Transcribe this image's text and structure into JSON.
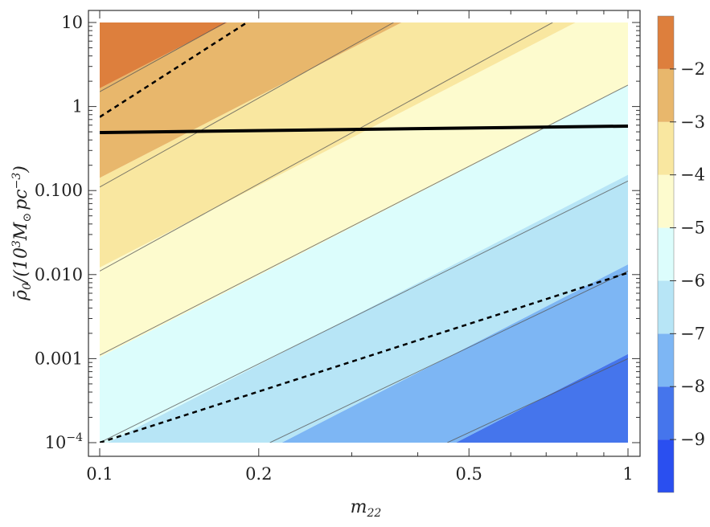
{
  "chart_data": {
    "type": "contour",
    "x_axis": {
      "label": "m",
      "label_sub": "22",
      "scale": "log",
      "range": [
        0.1,
        1
      ],
      "ticks": [
        {
          "value": 0.1,
          "label": "0.1"
        },
        {
          "value": 0.2,
          "label": "0.2"
        },
        {
          "value": 0.5,
          "label": "0.5"
        },
        {
          "value": 1,
          "label": "1"
        }
      ]
    },
    "y_axis": {
      "label_parts": {
        "rho": "ρ̄",
        "rho_sub": "0",
        "slash": "/(10",
        "exp3": "3",
        "msun": "M",
        "msun_sub": "⊙",
        "pc": "pc",
        "exp_neg3": "−3",
        "close": ")"
      },
      "scale": "log",
      "range": [
        0.0001,
        10
      ],
      "ticks": [
        {
          "value": 10,
          "label": "10"
        },
        {
          "value": 1,
          "label": "1"
        },
        {
          "value": 0.1,
          "label": "0.100"
        },
        {
          "value": 0.01,
          "label": "0.010"
        },
        {
          "value": 0.001,
          "label": "0.001"
        },
        {
          "value": 0.0001,
          "label": "10",
          "sup": "−4"
        }
      ]
    },
    "contour_levels": [
      -9,
      -8,
      -7,
      -6,
      -5,
      -4,
      -3,
      -2
    ],
    "contour_lines": [
      {
        "level": -2,
        "from": [
          0.1,
          1.5
        ],
        "to": [
          0.173,
          10
        ]
      },
      {
        "level": -3,
        "from": [
          0.1,
          0.11
        ],
        "to": [
          0.36,
          10
        ]
      },
      {
        "level": -4,
        "from": [
          0.1,
          0.011
        ],
        "to": [
          0.72,
          10
        ]
      },
      {
        "level": -5,
        "from": [
          0.1,
          0.0011
        ],
        "to": [
          1,
          1.8
        ]
      },
      {
        "level": -6,
        "from": [
          0.1,
          0.0001
        ],
        "to": [
          1,
          0.13
        ]
      },
      {
        "level": -7,
        "from": [
          0.21,
          0.0001
        ],
        "to": [
          1,
          0.011
        ]
      },
      {
        "level": -8,
        "from": [
          0.455,
          0.0001
        ],
        "to": [
          1,
          0.001
        ]
      }
    ],
    "band_colors": [
      {
        "range": [
          -10,
          -9
        ],
        "color": "#2a4ff0"
      },
      {
        "range": [
          -9,
          -8
        ],
        "color": "#4575ec"
      },
      {
        "range": [
          -8,
          -7
        ],
        "color": "#7db6f4"
      },
      {
        "range": [
          -7,
          -6
        ],
        "color": "#b7e5f6"
      },
      {
        "range": [
          -6,
          -5
        ],
        "color": "#dcfdfc"
      },
      {
        "range": [
          -5,
          -4
        ],
        "color": "#fdfbce"
      },
      {
        "range": [
          -4,
          -3
        ],
        "color": "#f9e7a0"
      },
      {
        "range": [
          -3,
          -2
        ],
        "color": "#e8b76c"
      },
      {
        "range": [
          -2,
          -1
        ],
        "color": "#dd7f3d"
      }
    ],
    "overlay_lines": [
      {
        "style": "solid-thick",
        "color": "#000000",
        "points": [
          [
            0.1,
            0.49
          ],
          [
            1,
            0.585
          ]
        ]
      },
      {
        "style": "dashed",
        "color": "#000000",
        "points": [
          [
            0.1,
            0.75
          ],
          [
            0.19,
            10
          ]
        ]
      },
      {
        "style": "dashed",
        "color": "#000000",
        "points": [
          [
            0.1,
            0.0001
          ],
          [
            1,
            0.0105
          ]
        ]
      }
    ],
    "colorbar": {
      "min": -10,
      "max": -1,
      "ticks": [
        {
          "value": -2,
          "label": "−2"
        },
        {
          "value": -3,
          "label": "−3"
        },
        {
          "value": -4,
          "label": "−4"
        },
        {
          "value": -5,
          "label": "−5"
        },
        {
          "value": -6,
          "label": "−6"
        },
        {
          "value": -7,
          "label": "−7"
        },
        {
          "value": -8,
          "label": "−8"
        },
        {
          "value": -9,
          "label": "−9"
        }
      ]
    }
  }
}
